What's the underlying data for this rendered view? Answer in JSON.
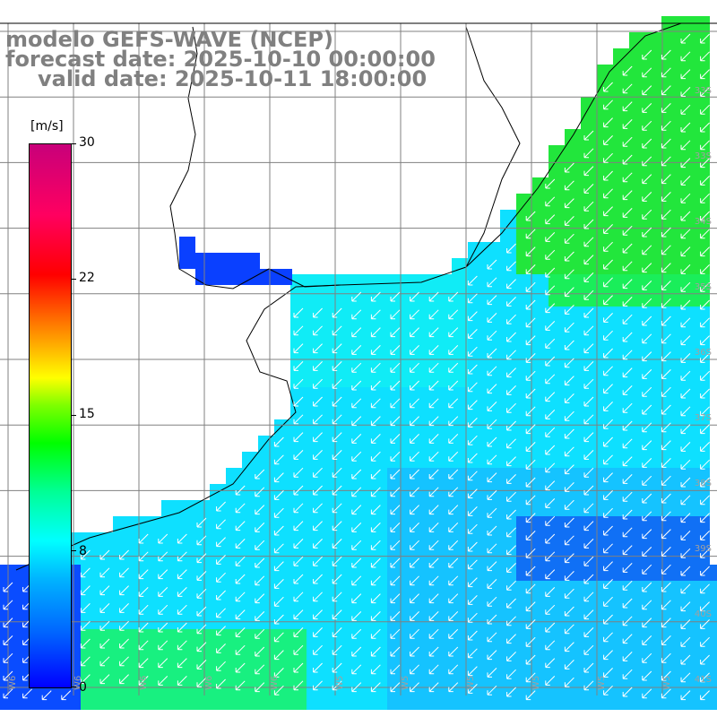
{
  "title": {
    "line1": "modelo GEFS-WAVE (NCEP)",
    "line2": "forecast date: 2025-10-10 00:00:00",
    "line3": "valid date: 2025-10-11 18:00:00"
  },
  "colorbar": {
    "unit": "[m/s]",
    "min": 0,
    "max": 30,
    "ticks": [
      {
        "value": 30,
        "label": "30"
      },
      {
        "value": 22,
        "label": "22"
      },
      {
        "value": 15,
        "label": "15"
      },
      {
        "value": 8,
        "label": "8"
      },
      {
        "value": 0,
        "label": "0"
      }
    ],
    "colors": [
      "#0000ff",
      "#0064ff",
      "#00b4ff",
      "#00ffff",
      "#00ff96",
      "#00ff00",
      "#7fff00",
      "#ffff00",
      "#ffa000",
      "#ff5000",
      "#ff0000",
      "#ff0060",
      "#c8007a"
    ]
  },
  "map": {
    "land_color": "#ffffff",
    "coastline_color": "#000000",
    "grid_color": "#808080",
    "vector_color": "#ffffff",
    "wind_direction": "south-west",
    "longitude_labels": [
      "W6",
      "W6",
      "W6",
      "W6",
      "W6",
      "W5",
      "W5",
      "W5",
      "W5",
      "W5",
      "W5"
    ],
    "latitude_labels": [
      "33S",
      "33S",
      "34S",
      "35S",
      "36S",
      "37S",
      "38S",
      "39S",
      "40S",
      "41S"
    ]
  }
}
